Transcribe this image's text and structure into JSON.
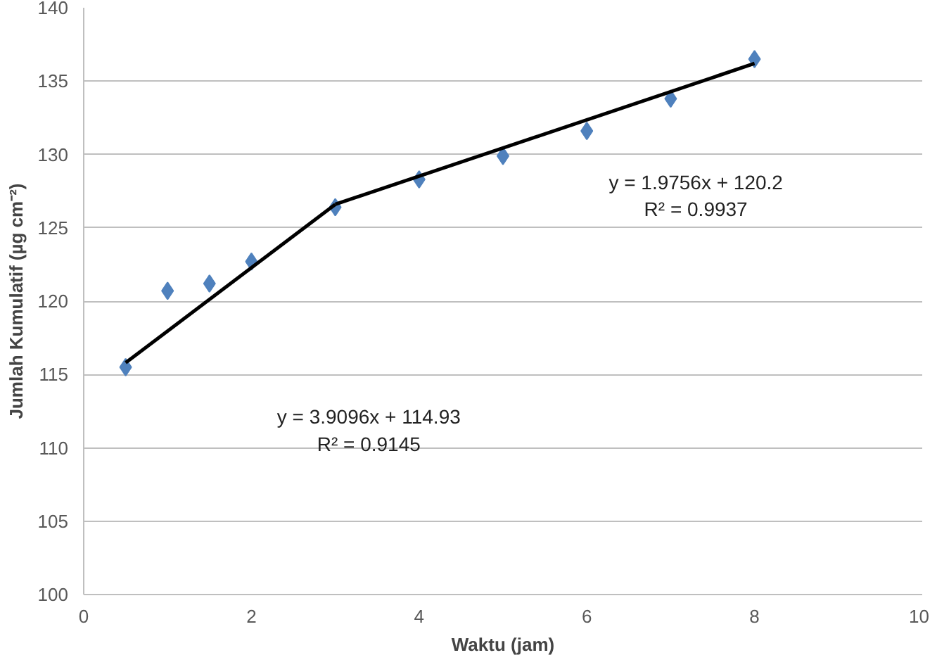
{
  "chart_data": {
    "type": "scatter",
    "xlabel": "Waktu (jam)",
    "ylabel": "Jumlah Kumulatif (µg cm⁻²)",
    "xlim": [
      0,
      10
    ],
    "xticks": [
      0,
      2,
      4,
      6,
      8,
      10
    ],
    "ylim": [
      100,
      140
    ],
    "yticks": [
      100,
      105,
      110,
      115,
      120,
      125,
      130,
      135,
      140
    ],
    "grid": "y",
    "series": [
      {
        "color": "#4f81bd",
        "marker": "diamond",
        "x": [
          0.5,
          1,
          1.5,
          2,
          3,
          4,
          5,
          6,
          7,
          8
        ],
        "values": [
          115.5,
          120.7,
          121.2,
          122.7,
          126.4,
          128.3,
          129.9,
          131.6,
          133.8,
          136.5
        ]
      },
      {
        "type": "line",
        "color": "#000000",
        "x": [
          0.5,
          3
        ],
        "values": [
          115.8,
          126.6
        ]
      },
      {
        "type": "line",
        "color": "#000000",
        "x": [
          3,
          8
        ],
        "values": [
          126.6,
          136.2
        ]
      }
    ],
    "annotations": [
      "y = 3.9096x + 114.93\nR² = 0.9145",
      "y = 1.9756x + 120.2\nR² = 0.9937"
    ]
  }
}
